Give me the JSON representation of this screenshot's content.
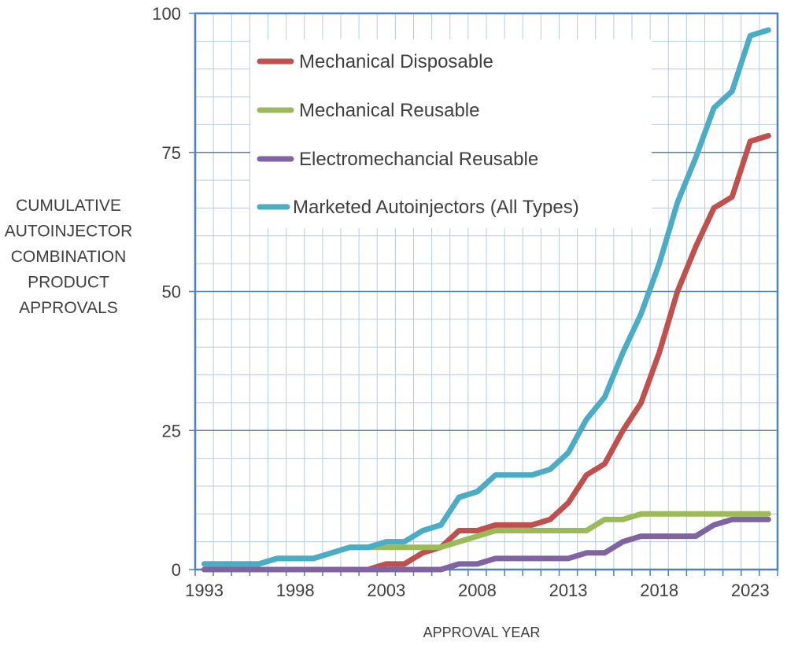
{
  "chart_data": {
    "type": "line",
    "xlabel": "APPROVAL YEAR",
    "ylabel": [
      "CUMULATIVE",
      "AUTOINJECTOR",
      "COMBINATION",
      "PRODUCT",
      "APPROVALS"
    ],
    "xlim": [
      1993,
      2024
    ],
    "ylim": [
      0,
      100
    ],
    "x_ticks": [
      1993,
      1998,
      2003,
      2008,
      2013,
      2018,
      2023
    ],
    "y_ticks": [
      0,
      25,
      50,
      75,
      100
    ],
    "grid": true,
    "legend_position": "top-center",
    "x": [
      1993,
      1994,
      1995,
      1996,
      1997,
      1998,
      1999,
      2000,
      2001,
      2002,
      2003,
      2004,
      2005,
      2006,
      2007,
      2008,
      2009,
      2010,
      2011,
      2012,
      2013,
      2014,
      2015,
      2016,
      2017,
      2018,
      2019,
      2020,
      2021,
      2022,
      2023,
      2024
    ],
    "series": [
      {
        "name": "Mechanical Disposable",
        "color": "#c0504d",
        "values": [
          0,
          0,
          0,
          0,
          0,
          0,
          0,
          0,
          0,
          0,
          1,
          1,
          3,
          4,
          7,
          7,
          8,
          8,
          8,
          9,
          12,
          17,
          19,
          25,
          30,
          39,
          50,
          58,
          65,
          67,
          77,
          78
        ]
      },
      {
        "name": "Mechanical Reusable",
        "color": "#9bbb59",
        "values": [
          1,
          1,
          1,
          1,
          2,
          2,
          2,
          3,
          4,
          4,
          4,
          4,
          4,
          4,
          5,
          6,
          7,
          7,
          7,
          7,
          7,
          7,
          9,
          9,
          10,
          10,
          10,
          10,
          10,
          10,
          10,
          10
        ]
      },
      {
        "name": "Electromechancial Reusable",
        "color": "#8064a2",
        "values": [
          0,
          0,
          0,
          0,
          0,
          0,
          0,
          0,
          0,
          0,
          0,
          0,
          0,
          0,
          1,
          1,
          2,
          2,
          2,
          2,
          2,
          3,
          3,
          5,
          6,
          6,
          6,
          6,
          8,
          9,
          9,
          9
        ]
      },
      {
        "name": "Marketed Autoinjectors (All Types)",
        "color": "#4bacc6",
        "values": [
          1,
          1,
          1,
          1,
          2,
          2,
          2,
          3,
          4,
          4,
          5,
          5,
          7,
          8,
          13,
          14,
          17,
          17,
          17,
          18,
          21,
          27,
          31,
          39,
          46,
          55,
          66,
          74,
          83,
          86,
          96,
          97
        ]
      }
    ]
  },
  "colors": {
    "axis": "#4f81bd",
    "major_grid": "#4f81bd",
    "minor_grid": "#b8cce4",
    "text": "#404040"
  }
}
